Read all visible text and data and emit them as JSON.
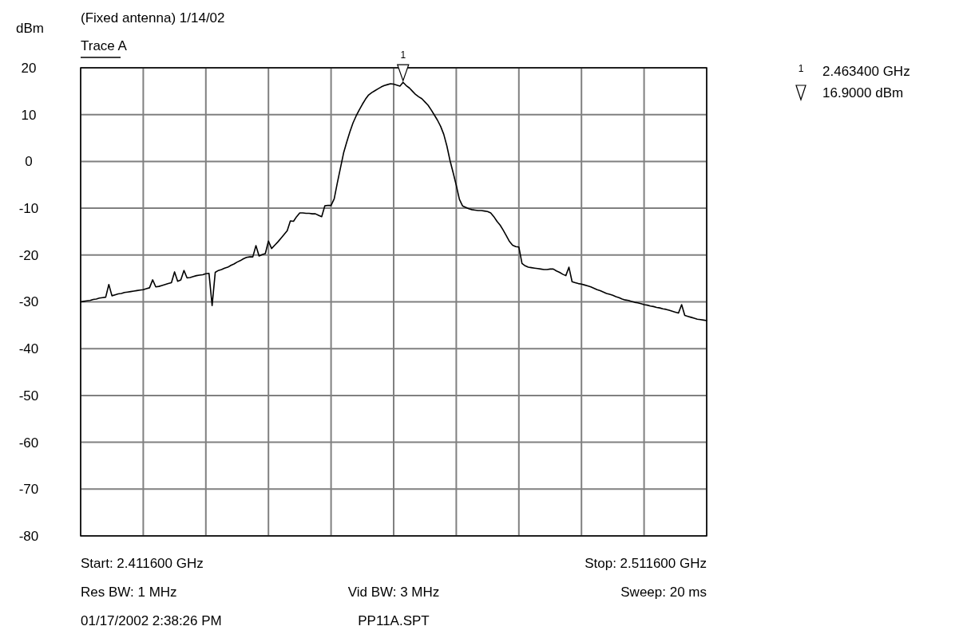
{
  "chart_data": {
    "type": "line",
    "title": "(Fixed antenna) 1/14/02",
    "ylabel": "dBm",
    "categories": [
      null,
      null,
      null,
      null,
      null,
      null,
      null,
      null,
      null,
      null,
      null,
      null,
      null,
      null,
      null,
      null,
      null,
      null,
      null,
      null,
      null,
      null,
      null,
      null,
      null,
      null,
      null,
      null,
      null,
      null,
      null,
      null,
      null,
      null,
      null,
      null,
      null,
      null,
      null,
      null,
      null,
      null,
      null,
      null,
      null,
      null,
      null,
      null,
      null,
      null,
      null,
      null,
      null,
      null,
      null,
      null,
      null,
      null,
      null,
      null,
      null,
      null,
      null,
      null,
      null,
      null,
      null,
      null,
      null,
      null,
      null,
      null,
      null,
      null,
      null,
      null,
      null,
      null,
      null,
      null,
      null,
      null,
      null,
      null,
      null,
      null,
      null,
      null,
      null,
      null,
      null,
      null,
      null,
      null,
      null,
      null,
      null,
      null,
      null,
      null,
      null,
      null,
      null,
      null,
      null,
      null,
      null,
      null,
      null,
      null,
      null,
      null,
      null,
      null,
      null,
      null,
      null,
      null,
      null,
      null,
      null,
      null,
      null,
      null,
      null,
      null,
      null,
      null,
      null,
      null,
      null,
      null,
      null,
      null,
      null,
      null,
      null,
      null,
      null,
      null,
      null,
      null,
      null,
      null,
      null,
      null,
      null,
      null,
      null,
      null,
      null,
      null,
      null,
      null,
      null,
      null,
      null,
      null,
      null,
      null,
      null,
      null,
      null,
      null,
      null,
      null,
      null,
      null,
      null,
      null,
      null,
      null,
      null,
      null,
      null,
      null,
      null,
      null,
      null,
      null,
      null,
      null,
      null,
      null,
      null,
      null,
      null,
      null,
      null,
      null,
      null,
      null,
      null,
      null,
      null,
      null,
      null,
      null,
      null,
      null,
      null
    ],
    "ylim": [
      -80,
      20
    ],
    "yticks": [
      -80,
      -70,
      -60,
      -50,
      -40,
      -30,
      -20,
      -10,
      0,
      10,
      20
    ],
    "grid": true,
    "legend": "top left",
    "marker": "none",
    "line_style": "solid",
    "series": [
      {
        "name": "Trace A",
        "color": "#000000",
        "values": [
          -30.0,
          -29.9,
          -29.8,
          -29.7,
          -29.5,
          -29.4,
          -29.2,
          -29.1,
          -29.0,
          -26.3,
          -28.7,
          -28.5,
          -28.3,
          -28.2,
          -28.0,
          -27.9,
          -27.8,
          -27.7,
          -27.6,
          -27.5,
          -27.4,
          -27.2,
          -27.0,
          -25.3,
          -26.8,
          -26.7,
          -26.5,
          -26.3,
          -26.1,
          -25.9,
          -23.6,
          -25.6,
          -25.3,
          -23.3,
          -24.9,
          -24.8,
          -24.6,
          -24.4,
          -24.3,
          -24.2,
          -24.0,
          -23.9,
          -30.8,
          -23.7,
          -23.3,
          -23.1,
          -22.8,
          -22.6,
          -22.2,
          -21.9,
          -21.5,
          -21.2,
          -20.8,
          -20.5,
          -20.4,
          -20.4,
          -18.0,
          -20.2,
          -19.9,
          -19.7,
          -17.0,
          -18.6,
          -17.9,
          -17.2,
          -16.4,
          -15.6,
          -14.8,
          -12.7,
          -12.8,
          -11.8,
          -11.0,
          -11.0,
          -11.1,
          -11.1,
          -11.2,
          -11.2,
          -11.5,
          -11.8,
          -9.5,
          -9.4,
          -9.4,
          -8.0,
          -4.6,
          -1.4,
          1.8,
          4.1,
          6.3,
          8.2,
          9.7,
          11.0,
          12.2,
          13.3,
          14.2,
          14.7,
          15.1,
          15.5,
          15.9,
          16.2,
          16.4,
          16.6,
          16.5,
          16.3,
          16.1,
          16.9,
          16.2,
          15.7,
          15.0,
          14.3,
          13.8,
          13.4,
          12.7,
          12.0,
          11.0,
          9.9,
          8.8,
          7.5,
          5.8,
          3.3,
          0.2,
          -2.4,
          -5.1,
          -8.1,
          -9.5,
          -9.8,
          -10.1,
          -10.3,
          -10.4,
          -10.5,
          -10.5,
          -10.6,
          -10.7,
          -11.0,
          -11.8,
          -12.8,
          -13.6,
          -14.7,
          -15.9,
          -17.1,
          -17.9,
          -18.2,
          -18.3,
          -21.8,
          -22.3,
          -22.6,
          -22.7,
          -22.8,
          -22.9,
          -23.0,
          -23.1,
          -23.1,
          -23.0,
          -23.0,
          -23.4,
          -23.7,
          -24.1,
          -24.4,
          -22.6,
          -25.7,
          -25.9,
          -26.1,
          -26.2,
          -26.4,
          -26.6,
          -26.8,
          -27.1,
          -27.4,
          -27.6,
          -27.9,
          -28.2,
          -28.4,
          -28.6,
          -28.9,
          -29.1,
          -29.4,
          -29.6,
          -29.7,
          -29.9,
          -30.1,
          -30.2,
          -30.4,
          -30.6,
          -30.7,
          -30.9,
          -31.0,
          -31.2,
          -31.3,
          -31.5,
          -31.6,
          -31.8,
          -32.0,
          -32.2,
          -32.4,
          -30.6,
          -32.9,
          -33.1,
          -33.3,
          -33.5,
          -33.7,
          -33.8,
          -33.9,
          -34.0
        ]
      }
    ],
    "annotations": [
      "Start: 2.411600 GHz",
      "Stop: 2.511600 GHz",
      "Res BW: 1 MHz",
      "Vid BW: 3 MHz",
      "Sweep: 20 ms",
      "01/17/2002 2:38:26 PM",
      "PP11A.SPT",
      "2.463400 GHz",
      "16.9000 dBm",
      "1",
      "1"
    ]
  }
}
